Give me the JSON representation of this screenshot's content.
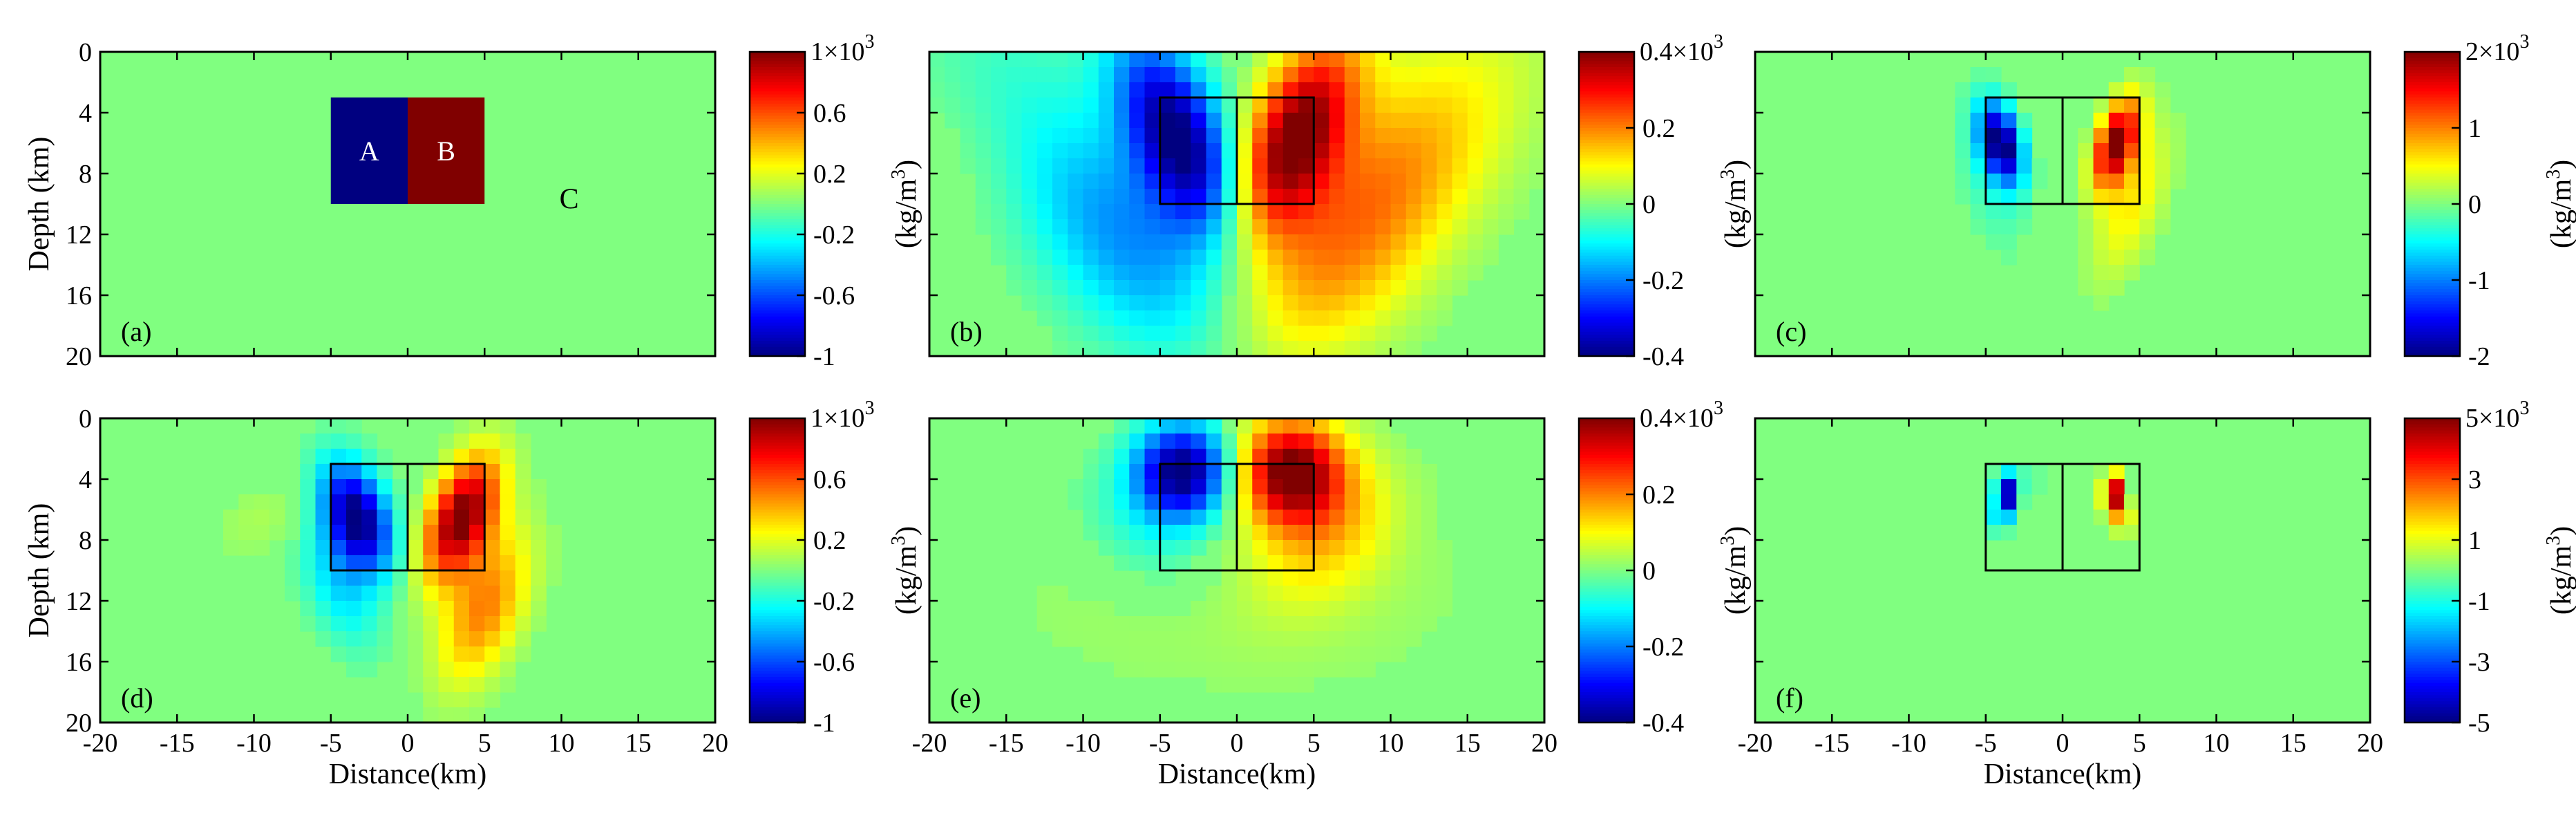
{
  "figure": {
    "xlabel": "Distance(km)",
    "ylabel": "Depth (km)",
    "colorbar_title": "(kg/m",
    "colorbar_title_sup": "3",
    "colorbar_title_end": ")",
    "mult_prefix": "×10",
    "mult_sup": "3",
    "block_labels": [
      "A",
      "B",
      "C"
    ]
  },
  "chart_data": [
    {
      "id": "a",
      "type": "heatmap",
      "panel_label": "(a)",
      "xlim": [
        -20,
        20
      ],
      "ylim": [
        0,
        20
      ],
      "y_reversed": true,
      "xticks": [],
      "yticks": [
        "0",
        "4",
        "8",
        "12",
        "16",
        "20"
      ],
      "colorbar": {
        "max": 1,
        "min": -1,
        "multiplier_lead": "1",
        "ticks": [
          "-1",
          "-0.6",
          "-0.2",
          "0.2",
          "0.6"
        ]
      },
      "outline_boxes": false,
      "blocks": [
        {
          "label": "A",
          "x": [
            -5,
            0
          ],
          "depth": [
            3,
            10
          ],
          "value": -1
        },
        {
          "label": "B",
          "x": [
            0,
            5
          ],
          "depth": [
            3,
            10
          ],
          "value": 1
        }
      ],
      "label_C": {
        "x": 10.5,
        "depth": 10.3
      },
      "anomalies": []
    },
    {
      "id": "b",
      "type": "heatmap",
      "panel_label": "(b)",
      "xlim": [
        -20,
        20
      ],
      "ylim": [
        0,
        20
      ],
      "y_reversed": true,
      "xticks": [],
      "yticks": [],
      "colorbar": {
        "max": 0.4,
        "min": -0.4,
        "multiplier_lead": "0.4",
        "ticks": [
          "-0.4",
          "-0.2",
          "0",
          "0.2"
        ]
      },
      "outline_boxes": true,
      "blocks": [],
      "anomalies": [
        {
          "x": -3.8,
          "z": 5.5,
          "a": -0.4,
          "sx": 2.3,
          "sz": 4.5,
          "tilt": 0.35
        },
        {
          "x": 3.8,
          "z": 5.5,
          "a": 0.4,
          "sx": 2.3,
          "sz": 4.5,
          "tilt": -0.35
        },
        {
          "x": -8,
          "z": 11,
          "a": -0.2,
          "sx": 4.5,
          "sz": 7.5,
          "tilt": 0.6
        },
        {
          "x": 8,
          "z": 11,
          "a": 0.22,
          "sx": 4.5,
          "sz": 7.5,
          "tilt": -0.6
        },
        {
          "x": -13,
          "z": 6,
          "a": 0.05,
          "sx": 5,
          "sz": 4,
          "tilt": 0.2
        }
      ]
    },
    {
      "id": "c",
      "type": "heatmap",
      "panel_label": "(c)",
      "xlim": [
        -20,
        20
      ],
      "ylim": [
        0,
        20
      ],
      "y_reversed": true,
      "xticks": [],
      "yticks": [],
      "colorbar": {
        "max": 2,
        "min": -2,
        "multiplier_lead": "2",
        "ticks": [
          "-2",
          "-1",
          "0",
          "1"
        ]
      },
      "outline_boxes": true,
      "blocks": [],
      "anomalies": [
        {
          "x": -4,
          "z": 6,
          "a": -2.1,
          "sx": 0.9,
          "sz": 1.8,
          "tilt": 0.2
        },
        {
          "x": 3.5,
          "z": 6,
          "a": 2.1,
          "sx": 0.9,
          "sz": 2,
          "tilt": -0.25
        },
        {
          "x": -4.8,
          "z": 8,
          "a": -0.3,
          "sx": 1.4,
          "sz": 3.4,
          "tilt": 0.2
        },
        {
          "x": 4.5,
          "z": 10,
          "a": 0.55,
          "sx": 1.4,
          "sz": 3.5,
          "tilt": -0.3
        }
      ]
    },
    {
      "id": "d",
      "type": "heatmap",
      "panel_label": "(d)",
      "xlim": [
        -20,
        20
      ],
      "ylim": [
        0,
        20
      ],
      "y_reversed": true,
      "xticks": [
        "-20",
        "-15",
        "-10",
        "-5",
        "0",
        "5",
        "10",
        "15",
        "20"
      ],
      "yticks": [
        "0",
        "4",
        "8",
        "12",
        "16",
        "20"
      ],
      "colorbar": {
        "max": 1,
        "min": -1,
        "multiplier_lead": "1",
        "ticks": [
          "-1",
          "-0.6",
          "-0.2",
          "0.2",
          "0.6"
        ]
      },
      "outline_boxes": true,
      "blocks": [],
      "anomalies": [
        {
          "x": -3.3,
          "z": 6.5,
          "a": -1.05,
          "sx": 1.5,
          "sz": 2.5,
          "tilt": 0.25
        },
        {
          "x": 3.5,
          "z": 6.5,
          "a": 1.05,
          "sx": 1.5,
          "sz": 2.8,
          "tilt": -0.3
        },
        {
          "x": -4.5,
          "z": 11,
          "a": -0.3,
          "sx": 1.6,
          "sz": 3,
          "tilt": 0.3
        },
        {
          "x": 5,
          "z": 12.5,
          "a": 0.5,
          "sx": 1.8,
          "sz": 3.5,
          "tilt": -0.3
        },
        {
          "x": -9,
          "z": 6.5,
          "a": 0.09,
          "sx": 2.5,
          "sz": 1.8,
          "tilt": -0.5
        }
      ]
    },
    {
      "id": "e",
      "type": "heatmap",
      "panel_label": "(e)",
      "xlim": [
        -20,
        20
      ],
      "ylim": [
        0,
        20
      ],
      "y_reversed": true,
      "xticks": [
        "-20",
        "-15",
        "-10",
        "-5",
        "0",
        "5",
        "10",
        "15",
        "20"
      ],
      "yticks": [],
      "colorbar": {
        "max": 0.4,
        "min": -0.4,
        "multiplier_lead": "0.4",
        "ticks": [
          "-0.4",
          "-0.2",
          "0",
          "0.2"
        ]
      },
      "outline_boxes": true,
      "blocks": [],
      "anomalies": [
        {
          "x": -3.5,
          "z": 3.5,
          "a": -0.42,
          "sx": 2.2,
          "sz": 2.2,
          "tilt": 0
        },
        {
          "x": 3.5,
          "z": 3.5,
          "a": 0.42,
          "sx": 2.4,
          "sz": 2.4,
          "tilt": 0
        },
        {
          "x": 6,
          "z": 7.5,
          "a": 0.12,
          "sx": 3,
          "sz": 3.3,
          "tilt": -0.3
        },
        {
          "x": -6,
          "z": 7.5,
          "a": -0.07,
          "sx": 3,
          "sz": 3,
          "tilt": 0.3
        },
        {
          "x": 0,
          "z": 12,
          "a": 0.03,
          "sx": 12,
          "sz": 5,
          "tilt": 0
        }
      ]
    },
    {
      "id": "f",
      "type": "heatmap",
      "panel_label": "(f)",
      "xlim": [
        -20,
        20
      ],
      "ylim": [
        0,
        20
      ],
      "y_reversed": true,
      "xticks": [
        "-20",
        "-15",
        "-10",
        "-5",
        "0",
        "5",
        "10",
        "15",
        "20"
      ],
      "yticks": [],
      "colorbar": {
        "max": 5,
        "min": -5,
        "multiplier_lead": "5",
        "ticks": [
          "-5",
          "-3",
          "-1",
          "1",
          "3"
        ]
      },
      "outline_boxes": true,
      "blocks": [],
      "anomalies": [
        {
          "x": -3.7,
          "z": 5,
          "a": -5.2,
          "sx": 0.45,
          "sz": 0.9,
          "tilt": 0
        },
        {
          "x": 3.3,
          "z": 5,
          "a": 5.2,
          "sx": 0.45,
          "sz": 0.9,
          "tilt": 0
        },
        {
          "x": -4.3,
          "z": 6.6,
          "a": -1.2,
          "sx": 0.6,
          "sz": 0.7,
          "tilt": 0
        },
        {
          "x": 4,
          "z": 6.6,
          "a": 1.3,
          "sx": 0.6,
          "sz": 0.8,
          "tilt": 0
        },
        {
          "x": -2.5,
          "z": 4,
          "a": -0.5,
          "sx": 0.8,
          "sz": 1,
          "tilt": 0
        }
      ]
    }
  ]
}
